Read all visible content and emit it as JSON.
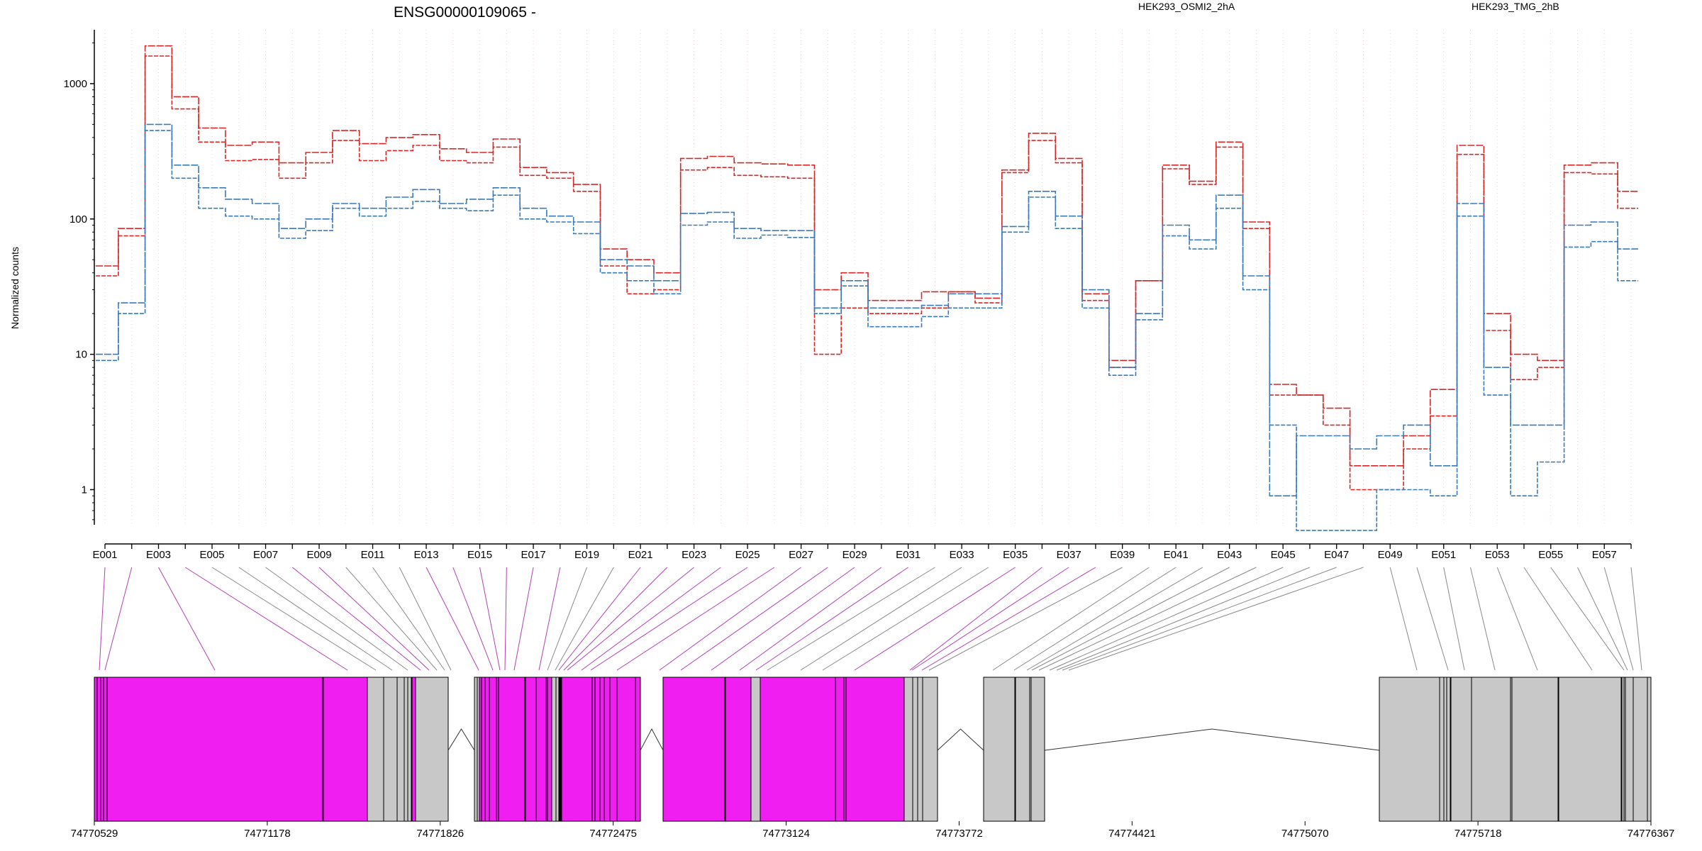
{
  "title": "ENSG00000109065 -",
  "legend": [
    {
      "label": "HEK293_OSMI2_2hA",
      "color": "#d62728"
    },
    {
      "label": "HEK293_TMG_2hB",
      "color": "#3a7ab8"
    }
  ],
  "colors": {
    "exonic_part": "#f01ef0",
    "intron_block": "#c8c8c8",
    "connector_magenta": "#b040b0",
    "connector_gray": "#888888"
  },
  "chart_data": {
    "type": "line",
    "title": "ENSG00000109065 -",
    "ylabel": "Normalized counts",
    "yscale": "log",
    "ylim": [
      0.55,
      2500
    ],
    "yticks": [
      1,
      10,
      100,
      1000
    ],
    "ytick_labels": [
      "1",
      "10",
      "100",
      "1000"
    ],
    "categories": [
      "E001",
      "E002",
      "E003",
      "E004",
      "E005",
      "E006",
      "E007",
      "E008",
      "E009",
      "E010",
      "E011",
      "E012",
      "E013",
      "E014",
      "E015",
      "E016",
      "E017",
      "E018",
      "E019",
      "E020",
      "E021",
      "E022",
      "E023",
      "E024",
      "E025",
      "E026",
      "E027",
      "E028",
      "E029",
      "E030",
      "E031",
      "E032",
      "E033",
      "E034",
      "E035",
      "E036",
      "E037",
      "E038",
      "E039",
      "E040",
      "E041",
      "E042",
      "E043",
      "E044",
      "E045",
      "E046",
      "E047",
      "E048",
      "E049",
      "E050",
      "E051",
      "E052",
      "E053",
      "E054",
      "E055",
      "E056",
      "E057",
      "E058"
    ],
    "xtick_labels": [
      "E001",
      "E003",
      "E005",
      "E007",
      "E009",
      "E011",
      "E013",
      "E015",
      "E017",
      "E019",
      "E021",
      "E023",
      "E025",
      "E027",
      "E029",
      "E031",
      "E033",
      "E035",
      "E037",
      "E039",
      "E041",
      "E043",
      "E045",
      "E047",
      "E049",
      "E051",
      "E053",
      "E055",
      "E057"
    ],
    "series": [
      {
        "name": "HEK293_OSMI2_2hA",
        "color": "#d62728",
        "values": [
          45,
          85,
          1900,
          800,
          470,
          350,
          370,
          260,
          310,
          450,
          360,
          400,
          420,
          330,
          310,
          390,
          240,
          220,
          180,
          60,
          50,
          40,
          280,
          290,
          260,
          255,
          250,
          30,
          40,
          25,
          25,
          29,
          29,
          26,
          230,
          430,
          280,
          28,
          9,
          35,
          250,
          190,
          370,
          95,
          6,
          5,
          4,
          1.5,
          1.5,
          2.5,
          5.5,
          350,
          20,
          10,
          9,
          250,
          260,
          160
        ]
      },
      {
        "name": "HEK293_OSMI2_2hA",
        "color": "#d62728",
        "values": [
          38,
          75,
          1600,
          650,
          370,
          270,
          275,
          200,
          260,
          380,
          270,
          320,
          350,
          270,
          260,
          340,
          210,
          200,
          160,
          45,
          28,
          30,
          230,
          240,
          210,
          205,
          200,
          10,
          22,
          20,
          20,
          22,
          29,
          24,
          220,
          380,
          260,
          25,
          8,
          35,
          235,
          180,
          340,
          85,
          5,
          5,
          3,
          1,
          1,
          2,
          3.5,
          300,
          15,
          6.5,
          8,
          220,
          215,
          120
        ]
      },
      {
        "name": "HEK293_TMG_2hB",
        "color": "#3a7ab8",
        "values": [
          10,
          24,
          500,
          250,
          170,
          140,
          130,
          85,
          100,
          130,
          120,
          145,
          165,
          130,
          140,
          170,
          120,
          105,
          95,
          50,
          45,
          35,
          110,
          112,
          85,
          82,
          82,
          22,
          35,
          22,
          22,
          23,
          28,
          28,
          88,
          160,
          105,
          30,
          8,
          20,
          90,
          70,
          150,
          38,
          0.9,
          2.5,
          2.5,
          2,
          2.5,
          3,
          1.5,
          130,
          8,
          3,
          3,
          90,
          95,
          60
        ]
      },
      {
        "name": "HEK293_TMG_2hB",
        "color": "#3a7ab8",
        "values": [
          9,
          20,
          450,
          200,
          120,
          105,
          100,
          72,
          82,
          120,
          105,
          120,
          135,
          120,
          115,
          150,
          100,
          95,
          78,
          40,
          35,
          28,
          90,
          95,
          72,
          76,
          73,
          20,
          32,
          16,
          16,
          19,
          22,
          22,
          80,
          145,
          85,
          22,
          7,
          18,
          75,
          60,
          120,
          30,
          3,
          0.5,
          0.5,
          0.5,
          1,
          1,
          0.9,
          105,
          5,
          0.9,
          1.6,
          62,
          68,
          35
        ]
      }
    ]
  },
  "exon_connectors": [
    {
      "type": "exonic_part"
    },
    {
      "type": "exonic_part"
    },
    {
      "type": "exonic_part"
    },
    {
      "type": "exonic_part"
    },
    {
      "type": "intron_block"
    },
    {
      "type": "intron_block"
    },
    {
      "type": "intron_block"
    },
    {
      "type": "exonic_part"
    },
    {
      "type": "exonic_part"
    },
    {
      "type": "intron_block"
    },
    {
      "type": "intron_block"
    },
    {
      "type": "intron_block"
    },
    {
      "type": "exonic_part"
    },
    {
      "type": "exonic_part"
    },
    {
      "type": "exonic_part"
    },
    {
      "type": "exonic_part"
    },
    {
      "type": "exonic_part"
    },
    {
      "type": "exonic_part"
    },
    {
      "type": "intron_block"
    },
    {
      "type": "intron_block"
    },
    {
      "type": "exonic_part"
    },
    {
      "type": "exonic_part"
    },
    {
      "type": "exonic_part"
    },
    {
      "type": "exonic_part"
    },
    {
      "type": "exonic_part"
    },
    {
      "type": "exonic_part"
    },
    {
      "type": "exonic_part"
    },
    {
      "type": "exonic_part"
    },
    {
      "type": "exonic_part"
    },
    {
      "type": "exonic_part"
    },
    {
      "type": "exonic_part"
    },
    {
      "type": "intron_block"
    },
    {
      "type": "intron_block"
    },
    {
      "type": "intron_block"
    },
    {
      "type": "exonic_part"
    },
    {
      "type": "exonic_part"
    },
    {
      "type": "exonic_part"
    },
    {
      "type": "exonic_part"
    },
    {
      "type": "intron_block"
    },
    {
      "type": "intron_block"
    },
    {
      "type": "intron_block"
    },
    {
      "type": "intron_block"
    },
    {
      "type": "intron_block"
    },
    {
      "type": "intron_block"
    },
    {
      "type": "intron_block"
    },
    {
      "type": "intron_block"
    },
    {
      "type": "intron_block"
    },
    {
      "type": "intron_block"
    },
    {
      "type": "intron_block"
    },
    {
      "type": "intron_block"
    },
    {
      "type": "intron_block"
    },
    {
      "type": "intron_block"
    },
    {
      "type": "intron_block"
    },
    {
      "type": "intron_block"
    },
    {
      "type": "intron_block"
    },
    {
      "type": "intron_block"
    },
    {
      "type": "intron_block"
    },
    {
      "type": "intron_block"
    }
  ],
  "gene_model": {
    "genomic_ticks": [
      "74770529",
      "74771178",
      "74771826",
      "74772475",
      "74773124",
      "74773772",
      "74774421",
      "74775070",
      "74775718",
      "74776367"
    ],
    "segments": [
      {
        "type": "exonic_part"
      },
      {
        "type": "exonic_part"
      },
      {
        "type": "exonic_part"
      },
      {
        "type": "intron_block"
      },
      {
        "type": "intron_block"
      },
      {
        "type": "intron_block"
      },
      {
        "type": "exonic_part"
      },
      {
        "type": "intron_block"
      },
      {
        "type": "intron_block"
      },
      {
        "type": "exonic_part"
      },
      {
        "type": "exonic_part"
      },
      {
        "type": "exonic_part"
      },
      {
        "type": "exonic_part"
      },
      {
        "type": "exonic_part"
      },
      {
        "type": "intron_block"
      },
      {
        "type": "intron_block"
      },
      {
        "type": "exonic_part"
      },
      {
        "type": "exonic_part"
      },
      {
        "type": "exonic_part"
      },
      {
        "type": "exonic_part"
      },
      {
        "type": "exonic_part"
      },
      {
        "type": "exonic_part"
      },
      {
        "type": "intron_block"
      },
      {
        "type": "intron_block"
      },
      {
        "type": "exonic_part"
      },
      {
        "type": "exonic_part"
      },
      {
        "type": "exonic_part"
      },
      {
        "type": "intron_block"
      },
      {
        "type": "intron_block"
      },
      {
        "type": "intron_block"
      },
      {
        "type": "intron_block"
      },
      {
        "type": "intron_block"
      },
      {
        "type": "intron_block"
      },
      {
        "type": "intron_block"
      },
      {
        "type": "intron_block"
      },
      {
        "type": "intron_block"
      },
      {
        "type": "intron_block"
      },
      {
        "type": "intron_block"
      },
      {
        "type": "intron_block"
      },
      {
        "type": "intron_block"
      },
      {
        "type": "intron_block"
      },
      {
        "type": "intron_block"
      }
    ]
  }
}
